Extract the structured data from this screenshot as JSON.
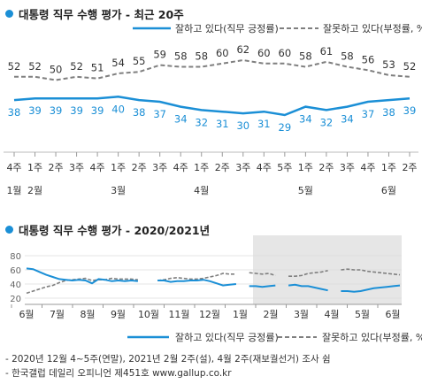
{
  "panel1": {
    "title": "대통령 직무 수행 평가 - 최근 20주",
    "legend_approve": "잘하고 있다(직무 긍정률)",
    "legend_disapprove": "잘못하고 있다(부정률, %)"
  },
  "panel2": {
    "title": "대통령 직무 수행 평가 - 2020/2021년",
    "legend_approve": "잘하고 있다(직무 긍정률)",
    "legend_disapprove": "잘못하고 있다(부정률, %)"
  },
  "footnotes": [
    "- 2020년 12월 4~5주(연말), 2021년 2월 2주(설), 4월 2주(재보궐선거) 조사 쉼",
    "- 한국갤럽 데일리 오피니언 제451호 www.gallup.co.kr"
  ],
  "colors": {
    "approve": "#1b8fd6",
    "disapprove": "#7f7f7f",
    "shade": "#e6e6e6"
  },
  "chart_data": [
    {
      "type": "line",
      "title": "대통령 직무 수행 평가 - 최근 20주",
      "categories": [
        "4주",
        "1주",
        "2주",
        "3주",
        "4주",
        "1주",
        "2주",
        "3주",
        "4주",
        "1주",
        "2주",
        "3주",
        "4주",
        "5주",
        "1주",
        "2주",
        "3주",
        "4주",
        "1주",
        "2주"
      ],
      "month_labels": [
        {
          "index": 0,
          "label": "1월"
        },
        {
          "index": 1,
          "label": "2월"
        },
        {
          "index": 5,
          "label": "3월"
        },
        {
          "index": 9,
          "label": "4월"
        },
        {
          "index": 14,
          "label": "5월"
        },
        {
          "index": 18,
          "label": "6월"
        }
      ],
      "series": [
        {
          "name": "잘하고 있다(직무 긍정률)",
          "values": [
            38,
            39,
            39,
            39,
            39,
            40,
            38,
            37,
            34,
            32,
            31,
            30,
            31,
            29,
            34,
            32,
            34,
            37,
            38,
            39
          ]
        },
        {
          "name": "잘못하고 있다(부정률, %)",
          "values": [
            52,
            52,
            50,
            52,
            51,
            54,
            55,
            59,
            58,
            58,
            60,
            62,
            60,
            60,
            58,
            61,
            58,
            56,
            53,
            52
          ]
        }
      ],
      "ylim": [
        0,
        70
      ],
      "legend": "top"
    },
    {
      "type": "line",
      "title": "대통령 직무 수행 평가 - 2020/2021년",
      "x_ticks": [
        "6월",
        "7월",
        "8월",
        "9월",
        "10월",
        "11월",
        "12월",
        "1월",
        "2월",
        "3월",
        "4월",
        "5월",
        "6월"
      ],
      "y_ticks": [
        20,
        40,
        60,
        80
      ],
      "ylim": [
        10,
        85
      ],
      "shaded_region": "2021년",
      "series": [
        {
          "name": "잘하고 있다(직무 긍정률)",
          "values": [
            62,
            61,
            57,
            53,
            50,
            47,
            46,
            45,
            46,
            45,
            41,
            47,
            46,
            44,
            45,
            44,
            45,
            44,
            null,
            null,
            45,
            45,
            43,
            44,
            44,
            45,
            45,
            46,
            44,
            41,
            38,
            39,
            40,
            null,
            37,
            37,
            36,
            37,
            38,
            null,
            38,
            39,
            37,
            37,
            35,
            33,
            31,
            null,
            30,
            30,
            29,
            30,
            32,
            34,
            35,
            36,
            37,
            38
          ]
        },
        {
          "name": "잘못하고 있다(부정률, %)",
          "values": [
            27,
            30,
            33,
            36,
            38,
            42,
            45,
            46,
            47,
            48,
            45,
            46,
            46,
            48,
            47,
            47,
            47,
            46,
            null,
            null,
            45,
            46,
            48,
            49,
            48,
            47,
            47,
            48,
            50,
            52,
            55,
            54,
            54,
            null,
            56,
            55,
            54,
            55,
            52,
            null,
            51,
            51,
            52,
            55,
            56,
            57,
            59,
            null,
            60,
            61,
            60,
            60,
            58,
            57,
            56,
            55,
            54,
            53
          ]
        }
      ],
      "legend": "bottom"
    }
  ]
}
